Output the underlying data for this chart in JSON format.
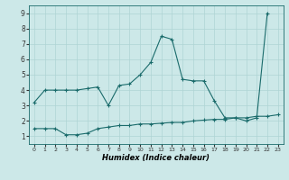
{
  "xlabel": "Humidex (Indice chaleur)",
  "xlim": [
    -0.5,
    23.5
  ],
  "ylim": [
    0.5,
    9.5
  ],
  "xticks": [
    0,
    1,
    2,
    3,
    4,
    5,
    6,
    7,
    8,
    9,
    10,
    11,
    12,
    13,
    14,
    15,
    16,
    17,
    18,
    19,
    20,
    21,
    22,
    23
  ],
  "yticks": [
    1,
    2,
    3,
    4,
    5,
    6,
    7,
    8,
    9
  ],
  "bg_color": "#cce8e8",
  "line_color": "#1a6b6b",
  "grid_color": "#afd4d4",
  "series1_x": [
    0,
    1,
    2,
    3,
    4,
    5,
    6,
    7,
    8,
    9,
    10,
    11,
    12,
    13,
    14,
    15,
    16,
    17,
    18,
    19,
    20,
    21,
    22
  ],
  "series1_y": [
    3.2,
    4.0,
    4.0,
    4.0,
    4.0,
    4.1,
    4.2,
    3.0,
    4.3,
    4.4,
    5.0,
    5.8,
    7.5,
    7.3,
    4.7,
    4.6,
    4.6,
    3.3,
    2.2,
    2.2,
    2.0,
    2.2,
    9.0
  ],
  "series2_x": [
    0,
    1,
    2,
    3,
    4,
    5,
    6,
    7,
    8,
    9,
    10,
    11,
    12,
    13,
    14,
    15,
    16,
    17,
    18,
    19,
    20,
    21,
    22,
    23
  ],
  "series2_y": [
    1.5,
    1.5,
    1.5,
    1.1,
    1.1,
    1.2,
    1.5,
    1.6,
    1.7,
    1.7,
    1.8,
    1.8,
    1.85,
    1.9,
    1.9,
    2.0,
    2.05,
    2.1,
    2.1,
    2.2,
    2.2,
    2.3,
    2.3,
    2.4
  ]
}
